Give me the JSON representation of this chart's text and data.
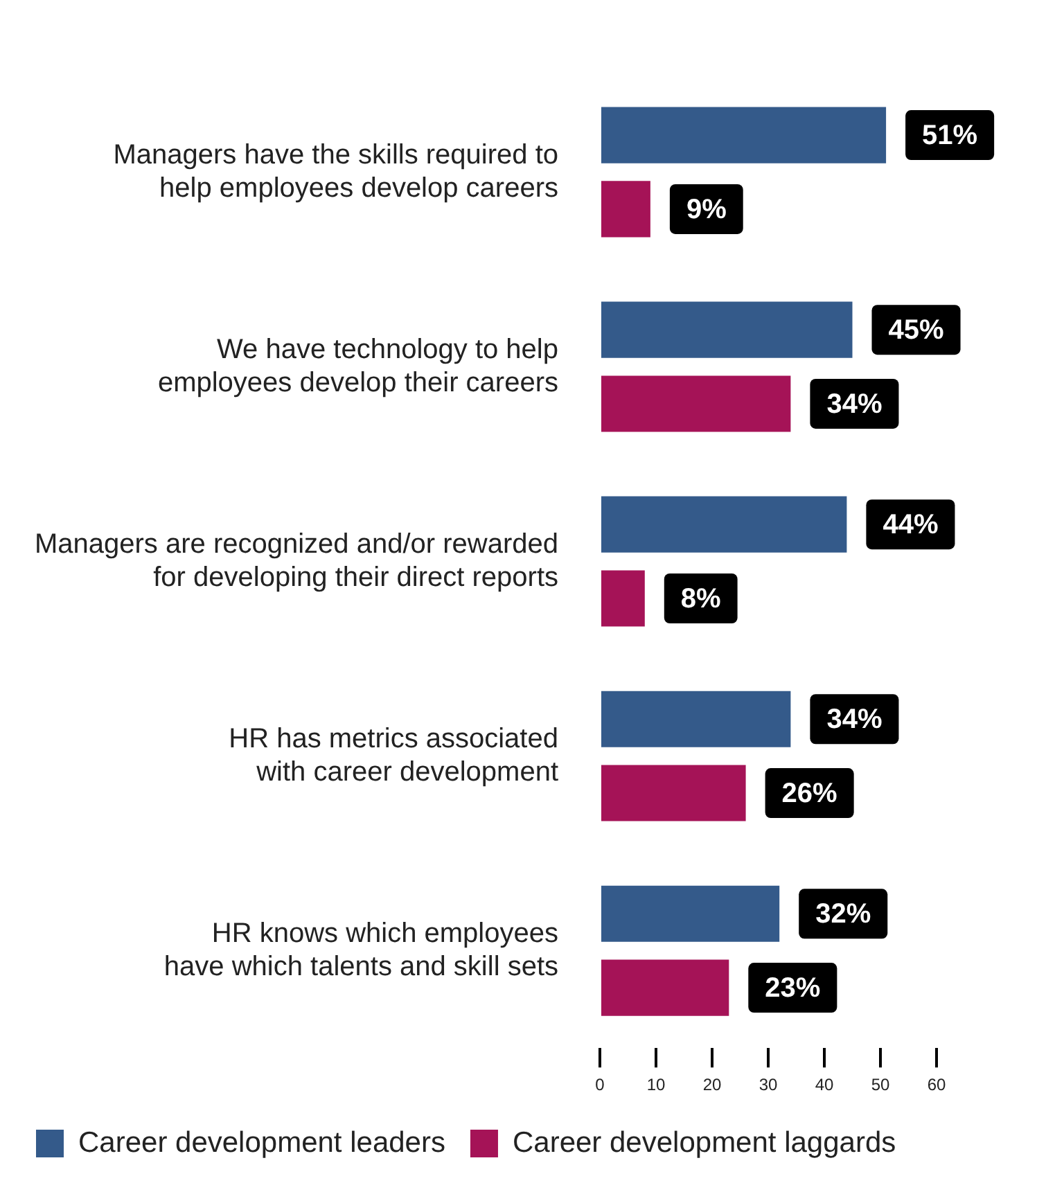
{
  "chart_data": {
    "type": "bar",
    "orientation": "horizontal",
    "categories": [
      "Managers have the skills required to\nhelp employees develop careers",
      "We have technology to help\nemployees develop their careers",
      "Managers are recognized and/or rewarded\nfor developing their direct reports",
      "HR has metrics associated\nwith career development",
      "HR knows which employees\nhave which talents and skill sets"
    ],
    "series": [
      {
        "name": "Career development leaders",
        "color": "#345a8a",
        "values": [
          51,
          45,
          44,
          34,
          32
        ],
        "value_labels": [
          "51%",
          "45%",
          "44%",
          "34%",
          "32%"
        ]
      },
      {
        "name": "Career development laggards",
        "color": "#a51357",
        "values": [
          9,
          34,
          8,
          26,
          23
        ],
        "value_labels": [
          "9%",
          "34%",
          "8%",
          "26%",
          "23%"
        ]
      }
    ],
    "xlim": [
      0,
      60
    ],
    "xticks": [
      0,
      10,
      20,
      30,
      40,
      50,
      60
    ],
    "grid": false,
    "legend": "bottom"
  }
}
